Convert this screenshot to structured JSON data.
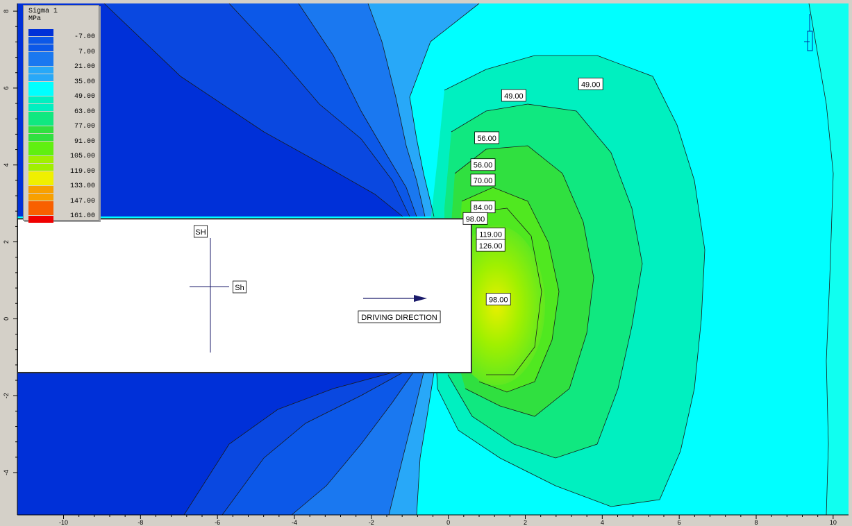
{
  "chart_data": {
    "type": "heatmap",
    "legend": {
      "title": "Sigma 1",
      "unit": "MPa",
      "levels": [
        "-7.00",
        "7.00",
        "21.00",
        "35.00",
        "49.00",
        "63.00",
        "77.00",
        "91.00",
        "105.00",
        "119.00",
        "133.00",
        "147.00",
        "161.00"
      ],
      "colors": [
        "#0030d8",
        "#0c58e8",
        "#1a78f0",
        "#28a8f8",
        "#00ffff",
        "#00f0c0",
        "#10e880",
        "#30e040",
        "#60f010",
        "#a0f000",
        "#f0f000",
        "#f8a000",
        "#f86000",
        "#f00000"
      ]
    },
    "x_ticks": [
      "-10",
      "-8",
      "-6",
      "-4",
      "-2",
      "0",
      "2",
      "4",
      "6",
      "8",
      "10"
    ],
    "y_ticks": [
      "8",
      "6",
      "4",
      "2",
      "0",
      "-2",
      "-4"
    ],
    "xlim": [
      -11.2,
      10.4
    ],
    "ylim": [
      -5.1,
      8.2
    ],
    "contour_labels": [
      {
        "text": "49.00",
        "x": 1.7,
        "y": 5.8
      },
      {
        "text": "49.00",
        "x": 3.7,
        "y": 6.1
      },
      {
        "text": "56.00",
        "x": 1.0,
        "y": 4.7
      },
      {
        "text": "56.00",
        "x": 0.9,
        "y": 4.0
      },
      {
        "text": "70.00",
        "x": 0.9,
        "y": 3.6
      },
      {
        "text": "84.00",
        "x": 0.9,
        "y": 2.9
      },
      {
        "text": "98.00",
        "x": 0.7,
        "y": 2.6
      },
      {
        "text": "119.00",
        "x": 1.1,
        "y": 2.2
      },
      {
        "text": "126.00",
        "x": 1.1,
        "y": 1.9
      },
      {
        "text": "98.00",
        "x": 1.3,
        "y": 0.5
      }
    ],
    "annotations": {
      "sh_major": "SH",
      "sh_minor": "Sh",
      "direction": "DRIVING DIRECTION"
    },
    "excavation": {
      "x0": -11.2,
      "x1": 0.6,
      "y0": -1.4,
      "y1": 2.6
    }
  }
}
